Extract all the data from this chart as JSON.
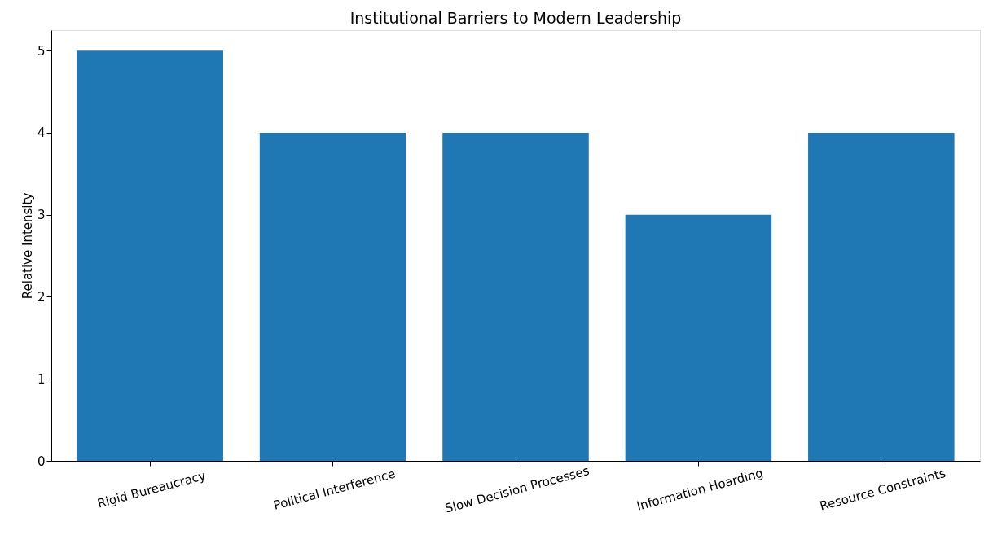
{
  "chart_data": {
    "type": "bar",
    "title": "Institutional Barriers to Modern Leadership",
    "ylabel": "Relative Intensity",
    "categories": [
      "Rigid Bureaucracy",
      "Political Interference",
      "Slow Decision Processes",
      "Information Hoarding",
      "Resource Constraints"
    ],
    "values": [
      5,
      4,
      4,
      3,
      4
    ],
    "color": "#1f77b4",
    "ylim": [
      0,
      5.25
    ],
    "yticks": [
      0,
      1,
      2,
      3,
      4,
      5
    ],
    "grid": false
  }
}
